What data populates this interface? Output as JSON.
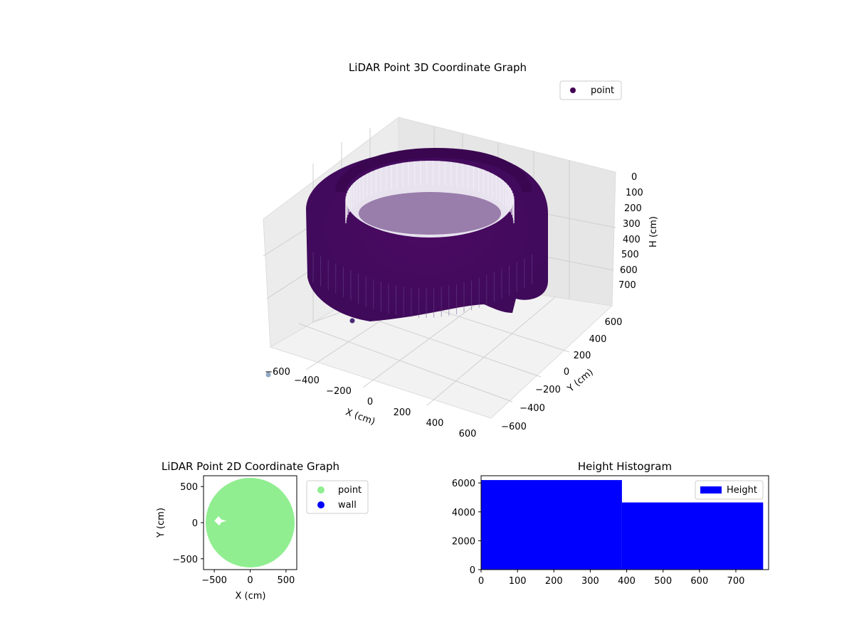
{
  "chart_data": [
    {
      "type": "scatter3d",
      "title": "LiDAR Point 3D Coordinate Graph",
      "xlabel": "X (cm)",
      "ylabel": "Y (cm)",
      "zlabel": "H (cm)",
      "xlim": [
        -650,
        650
      ],
      "ylim": [
        -650,
        650
      ],
      "zlim": [
        0,
        775
      ],
      "z_inverted": true,
      "xticks": [
        -600,
        -400,
        -200,
        0,
        200,
        400,
        600
      ],
      "yticks": [
        -600,
        -400,
        -200,
        0,
        200,
        400,
        600
      ],
      "zticks": [
        0,
        100,
        200,
        300,
        400,
        500,
        600,
        700
      ],
      "grid": true,
      "legend": {
        "placement": "upper-right",
        "entries": [
          "point"
        ]
      },
      "series": [
        {
          "name": "point",
          "color": "#440154",
          "shape": "cylindrical-shell",
          "outer_radius": 630,
          "inner_radius": 430,
          "h_range": [
            0,
            775
          ],
          "notch_near_angle_deg": -60,
          "notch_near_radius": 600
        }
      ]
    },
    {
      "type": "scatter",
      "title": "LiDAR Point 2D Coordinate Graph",
      "xlabel": "X (cm)",
      "ylabel": "Y (cm)",
      "xlim": [
        -650,
        650
      ],
      "ylim": [
        -650,
        650
      ],
      "xticks": [
        -500,
        0,
        500
      ],
      "yticks": [
        -500,
        0,
        500
      ],
      "legend": {
        "placement": "outside-right",
        "entries": [
          "point",
          "wall"
        ]
      },
      "series": [
        {
          "name": "point",
          "color": "#90ee90",
          "shape": "filled-disk",
          "radius": 620
        },
        {
          "name": "wall",
          "color": "#0000ff",
          "points": []
        }
      ],
      "gap": {
        "x": [
          -500,
          -330
        ],
        "y": [
          -40,
          90
        ]
      }
    },
    {
      "type": "histogram",
      "title": "Height Histogram",
      "xlim": [
        0,
        790
      ],
      "ylim": [
        0,
        6500
      ],
      "xticks": [
        0,
        100,
        200,
        300,
        400,
        500,
        600,
        700
      ],
      "yticks": [
        0,
        2000,
        4000,
        6000
      ],
      "legend": {
        "placement": "upper-right",
        "entries": [
          "Height"
        ]
      },
      "series": [
        {
          "name": "Height",
          "color": "#0000ff",
          "bins": [
            0,
            387,
            775
          ],
          "values": [
            6200,
            4650
          ]
        }
      ]
    }
  ]
}
